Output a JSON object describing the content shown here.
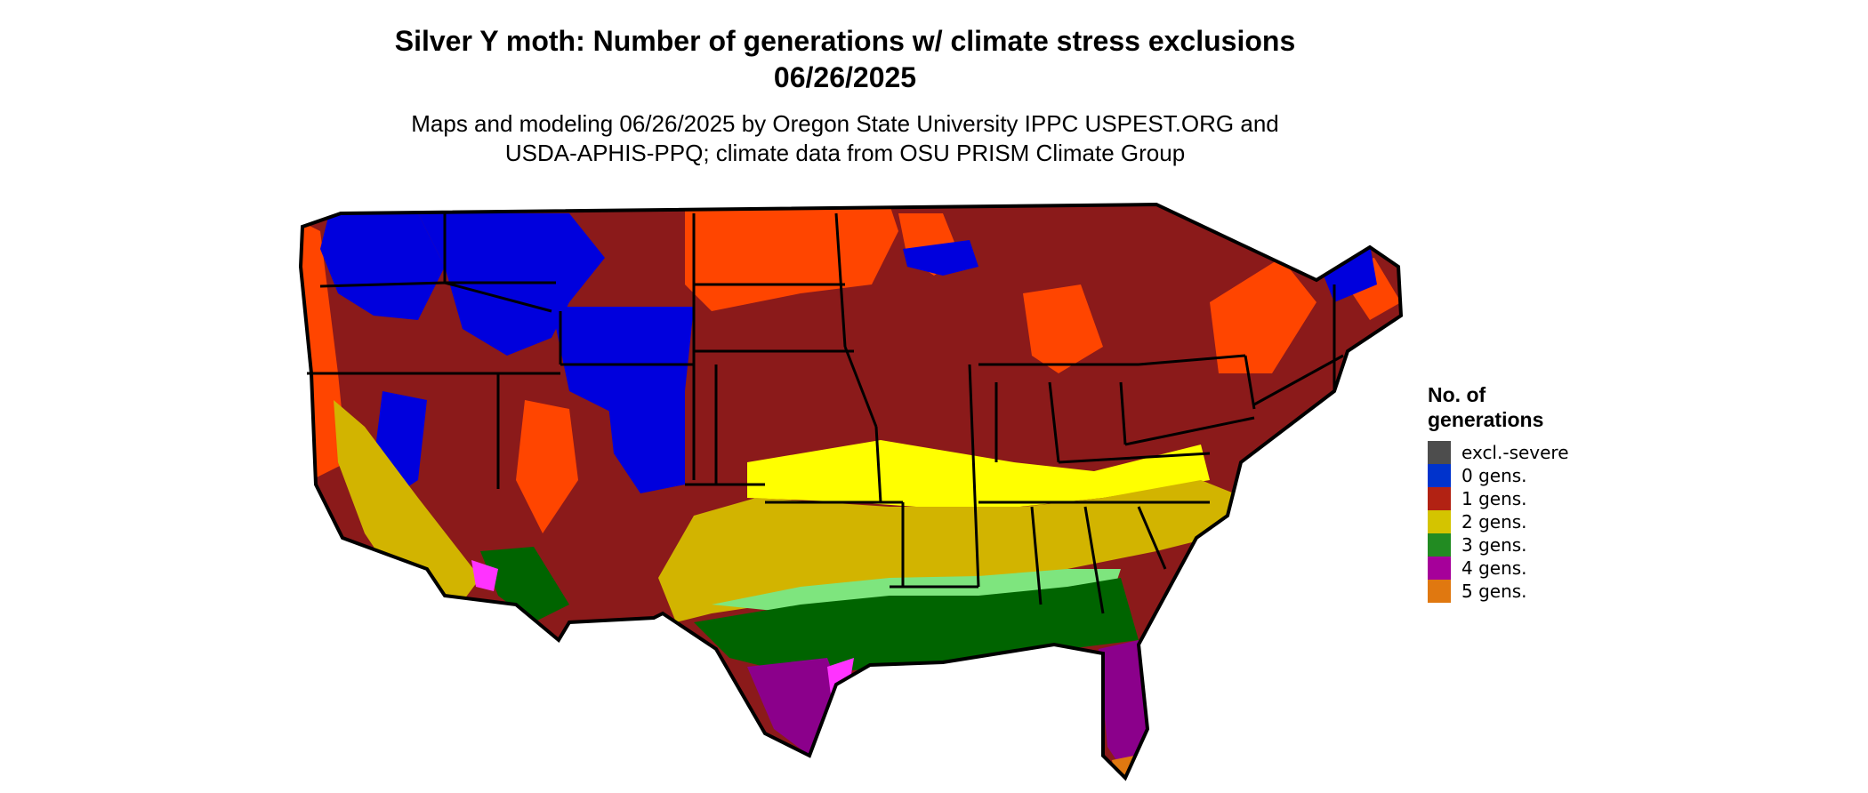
{
  "title": {
    "line1": "Silver Y moth: Number of generations w/ climate stress exclusions",
    "line2": "06/26/2025"
  },
  "subtitle": {
    "line1": "Maps and modeling 06/26/2025 by Oregon State University IPPC USPEST.ORG and",
    "line2": "USDA-APHIS-PPQ; climate data from OSU PRISM Climate Group"
  },
  "legend": {
    "title_line1": "No. of",
    "title_line2": "generations",
    "items": [
      {
        "label": "excl.-severe",
        "color": "#4d4d4d"
      },
      {
        "label": "0 gens.",
        "color": "#0033cc"
      },
      {
        "label": "1 gens.",
        "color": "#b22213"
      },
      {
        "label": "2 gens.",
        "color": "#d4c400"
      },
      {
        "label": "3 gens.",
        "color": "#228b22"
      },
      {
        "label": "4 gens.",
        "color": "#a6009a"
      },
      {
        "label": "5 gens.",
        "color": "#e07810"
      }
    ]
  },
  "map": {
    "region": "Contiguous United States",
    "zone_colors": {
      "gen0": "#0000dd",
      "gen1_light": "#ff4500",
      "gen1": "#8b1a1a",
      "gen2_light": "#ffff00",
      "gen2": "#d2b400",
      "gen3_light": "#7ee57e",
      "gen3": "#006400",
      "gen4_light": "#ff33ff",
      "gen4": "#8b008b",
      "gen5": "#e07810"
    }
  }
}
